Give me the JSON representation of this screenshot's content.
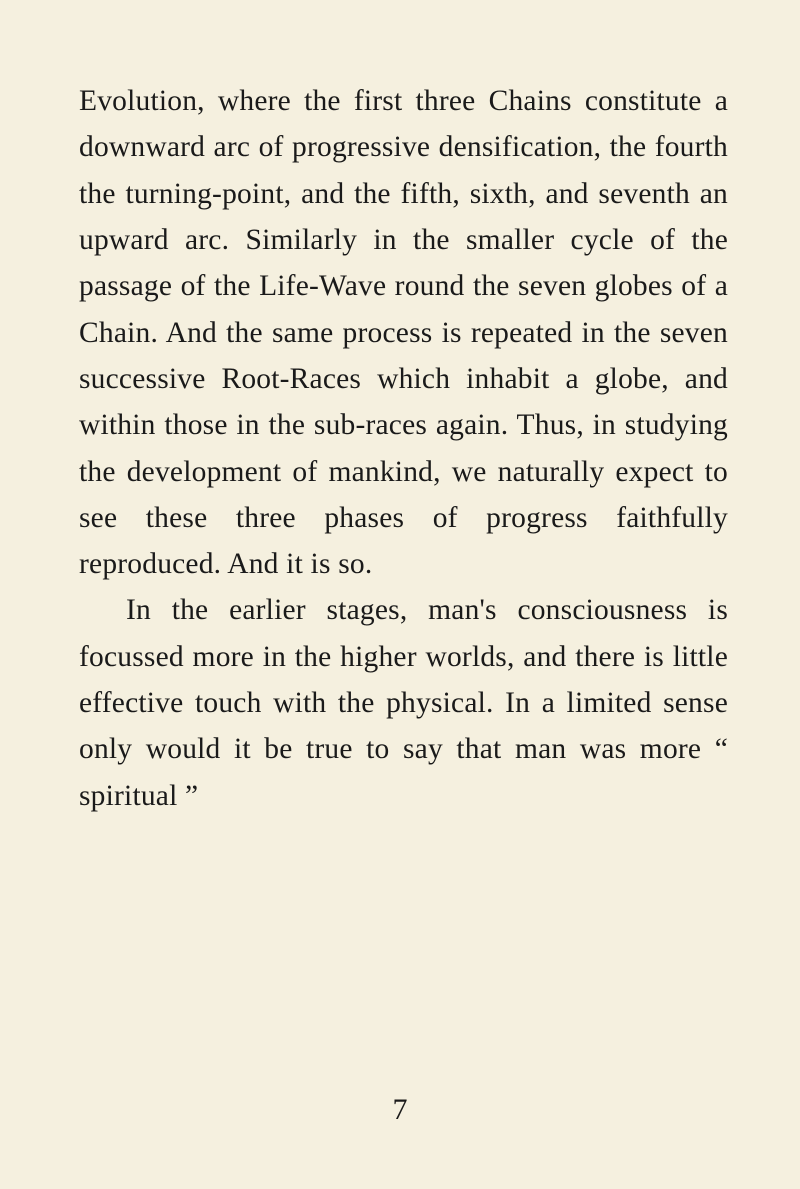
{
  "page": {
    "paragraphs": [
      {
        "text": "Evolution, where the first three Chains constitute a downward arc of progressive densification, the fourth the turning-point, and the fifth, sixth, and seventh an upward arc. Similarly in the smaller cycle of the passage of the Life-Wave round the seven globes of a Chain. And the same process is repeated in the seven successive Root-Races which inhabit a globe, and within those in the sub-races again. Thus, in studying the development of mankind, we naturally expect to see these three phases of progress faithfully reproduced. And it is so.",
        "indent": false
      },
      {
        "text": "In the earlier stages, man's consciousness is focussed more in the higher worlds, and there is little effective touch with the physical. In a limited sense only would it be true to say that man was more “ spiritual ”",
        "indent": true
      }
    ],
    "pageNumber": "7",
    "style": {
      "backgroundColor": "#f5f0df",
      "textColor": "#1a1a1a",
      "fontFamily": "Georgia, Times New Roman, serif",
      "fontSize": 29.5,
      "lineHeight": 1.57,
      "indentSize": 47,
      "pageWidth": 800,
      "pageHeight": 1189
    }
  }
}
